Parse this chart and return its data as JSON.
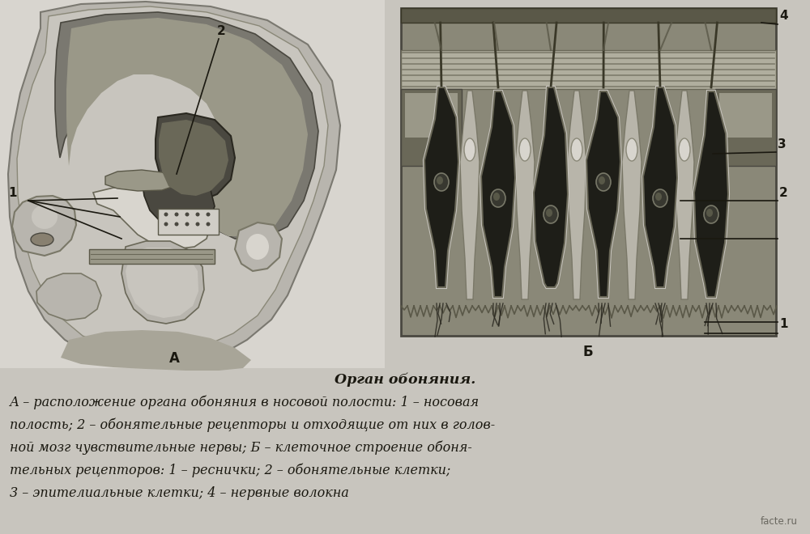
{
  "background_color": "#c8c5be",
  "fig_width": 10.0,
  "fig_height": 6.6,
  "dpi": 100,
  "title": "Орган обоняния.",
  "caption_lines": [
    "А – расположение органа обоняния в носовой полости: 1 – носовая",
    "полость; 2 – обонятельные рецепторы и отходящие от них в голов-",
    "ной мозг чувствительные нервы; Б – клеточное строение обоня-",
    "тельных рецепторов: 1 – реснички; 2 – обонятельные клетки;",
    "3 – эпителиальные клетки; 4 – нервные волокна"
  ],
  "watermark": "facte.ru",
  "label_A": "А",
  "label_B": "Б",
  "text_fontsize": 11.5,
  "title_fontsize": 12.5
}
